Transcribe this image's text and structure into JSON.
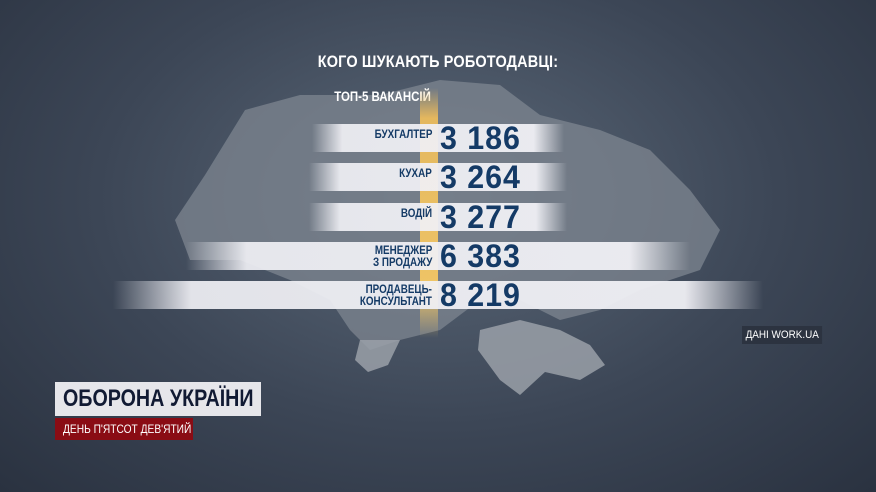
{
  "chart_data": {
    "type": "bar",
    "orientation": "horizontal",
    "title": "КОГО ШУКАЮТЬ РОБОТОДАВЦІ:",
    "subtitle": "ТОП-5 ВАКАНСІЙ",
    "categories": [
      "БУХГАЛТЕР",
      "КУХАР",
      "ВОДІЙ",
      "МЕНЕДЖЕР З ПРОДАЖУ",
      "ПРОДАВЕЦЬ-КОНСУЛЬТАНТ"
    ],
    "category_lines": [
      [
        "БУХГАЛТЕР"
      ],
      [
        "КУХАР"
      ],
      [
        "ВОДІЙ"
      ],
      [
        "МЕНЕДЖЕР",
        "З ПРОДАЖУ"
      ],
      [
        "ПРОДАВЕЦЬ-",
        "КОНСУЛЬТАНТ"
      ]
    ],
    "values": [
      3186,
      3264,
      3277,
      6383,
      8219
    ],
    "value_labels": [
      "3 186",
      "3 264",
      "3 277",
      "6 383",
      "8 219"
    ],
    "source": "ДАНІ WORK.UA",
    "colors": {
      "bar": "#f0f0f5",
      "text": "#143a66",
      "accent": "#f5c864"
    }
  },
  "overlay": {
    "show_title": "ОБОРОНА УКРАЇНИ",
    "day_label": "ДЕНЬ П'ЯТСОТ ДЕВ'ЯТИЙ",
    "colors": {
      "day_bg": "#8a0c14",
      "title_bg": "#e6e6ea"
    }
  }
}
